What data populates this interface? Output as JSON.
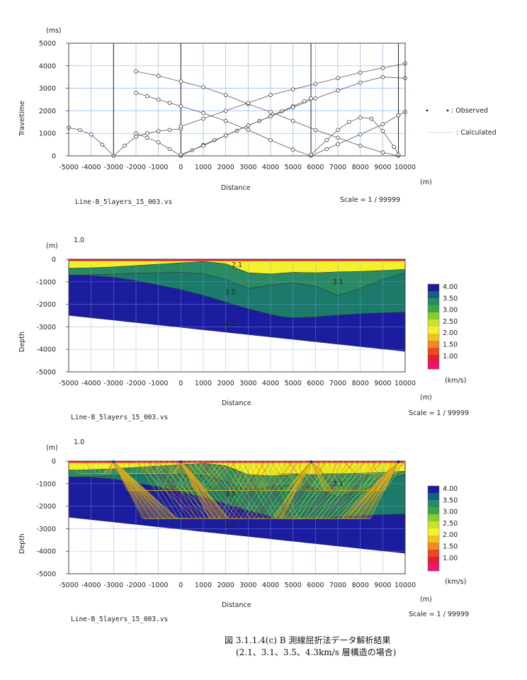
{
  "chart_data": [
    {
      "type": "line",
      "ylabel": "Traveltime",
      "yunit": "(ms)",
      "xlabel": "Distance",
      "xunit": "(m)",
      "xlim": [
        -5000,
        10000
      ],
      "ylim": [
        0,
        5000
      ],
      "xticks": [
        -5000,
        -4000,
        -3000,
        -2000,
        -1000,
        0,
        1000,
        2000,
        3000,
        4000,
        5000,
        6000,
        7000,
        8000,
        9000,
        10000
      ],
      "yticks": [
        0,
        1000,
        2000,
        3000,
        4000,
        5000
      ],
      "shot_points": [
        -3000,
        0,
        5800,
        9700
      ],
      "legend": {
        "observed": ": Observed",
        "calculated": ": Calculated"
      },
      "file_label": "Line-B_5layers_15_003.vs",
      "scale_label": "Scale = 1 / 99999",
      "series": [
        {
          "x": [
            -5000,
            -4500,
            -4000,
            -3500,
            -3000,
            -2500,
            -2000,
            -1500,
            -1000,
            -500,
            0
          ],
          "y": [
            1250,
            1150,
            950,
            500,
            0,
            450,
            850,
            1000,
            1100,
            1150,
            1200
          ]
        },
        {
          "x": [
            -2000,
            -1500,
            -1000,
            -500,
            0,
            500,
            1000,
            1500,
            2000,
            2500,
            3000,
            3500,
            4000,
            4500,
            5000,
            5500,
            5800
          ],
          "y": [
            1000,
            800,
            600,
            300,
            0,
            250,
            480,
            700,
            900,
            1120,
            1340,
            1550,
            1760,
            1980,
            2200,
            2420,
            2550
          ]
        },
        {
          "x": [
            -2000,
            -1500,
            -1000,
            -500,
            0,
            1000,
            2000,
            3000,
            4000,
            5000,
            5800,
            6500,
            7000,
            8000,
            9000,
            9700,
            10000
          ],
          "y": [
            2800,
            2650,
            2500,
            2350,
            2200,
            1900,
            1550,
            1150,
            700,
            280,
            0,
            300,
            520,
            950,
            1400,
            1800,
            1950
          ]
        },
        {
          "x": [
            -2000,
            -1000,
            0,
            1000,
            2000,
            3000,
            4000,
            5000,
            6000,
            7000,
            8000,
            9000,
            9700
          ],
          "y": [
            3750,
            3550,
            3300,
            3050,
            2700,
            2300,
            1950,
            1550,
            1150,
            800,
            450,
            150,
            0
          ]
        },
        {
          "x": [
            0,
            1000,
            2000,
            3000,
            4000,
            5000,
            6000,
            7000,
            8000,
            9000,
            10000
          ],
          "y": [
            50,
            450,
            900,
            1350,
            1750,
            2150,
            2550,
            2900,
            3250,
            3500,
            3450
          ]
        },
        {
          "x": [
            0,
            1000,
            2000,
            3000,
            4000,
            5000,
            6000,
            7000,
            8000,
            9000,
            10000
          ],
          "y": [
            1300,
            1650,
            2000,
            2350,
            2700,
            2950,
            3200,
            3450,
            3700,
            3900,
            4100
          ]
        },
        {
          "x": [
            5800,
            6500,
            7000,
            7500,
            8000,
            8500,
            9000,
            9500,
            9700
          ],
          "y": [
            50,
            700,
            1150,
            1500,
            1700,
            1650,
            1100,
            400,
            50
          ]
        }
      ]
    },
    {
      "type": "area",
      "ylabel": "Depth",
      "yunit": "(m)",
      "xlabel": "Distance",
      "xunit": "(m)",
      "ve_label": "1.0",
      "xlim": [
        -5000,
        10000
      ],
      "ylim": [
        -5000,
        0
      ],
      "xticks": [
        -5000,
        -4000,
        -3000,
        -2000,
        -1000,
        0,
        1000,
        2000,
        3000,
        4000,
        5000,
        6000,
        7000,
        8000,
        9000,
        10000
      ],
      "yticks": [
        0,
        -1000,
        -2000,
        -3000,
        -4000,
        -5000
      ],
      "file_label": "Line-B_5layers_15_003.vs",
      "scale_label": "Scale = 1 / 99999",
      "colorbar": {
        "unit": "(km/s)",
        "labels": [
          "4.00",
          "3.50",
          "3.00",
          "2.50",
          "2.00",
          "1.50",
          "1.00"
        ],
        "colors": [
          "#1c1c9e",
          "#13617c",
          "#2a8a62",
          "#3aa648",
          "#8acc2c",
          "#c8e12a",
          "#f3f22a",
          "#f0c21e",
          "#ee8a1e",
          "#ec4a1e",
          "#e51c3a",
          "#f0146e"
        ]
      },
      "layers": [
        {
          "velocity": "2.1",
          "color": "#f3f22a",
          "top_x": [
            -5000,
            10000
          ],
          "top_y": [
            0,
            0
          ]
        },
        {
          "velocity": "3.1",
          "color": "#2a8a62",
          "top_x": [
            -5000,
            -4000,
            -3000,
            -2000,
            -1000,
            0,
            1000,
            2000,
            3000,
            4000,
            5000,
            6000,
            7000,
            8000,
            9000,
            10000
          ],
          "top_y": [
            -400,
            -380,
            -340,
            -280,
            -220,
            -160,
            -100,
            -200,
            -600,
            -650,
            -580,
            -600,
            -560,
            -540,
            -500,
            -450
          ]
        },
        {
          "velocity": "3.5",
          "color": "#1c7a6a",
          "top_x": [
            -5000,
            -4000,
            -3000,
            -2000,
            -1000,
            0,
            1000,
            2000,
            3000,
            4000,
            5000,
            6000,
            7000,
            8000,
            9000,
            10000
          ],
          "top_y": [
            -700,
            -690,
            -660,
            -620,
            -600,
            -580,
            -650,
            -900,
            -1300,
            -1150,
            -1050,
            -1200,
            -1600,
            -1300,
            -900,
            -600
          ]
        },
        {
          "velocity": "4.3",
          "color": "#1c1c9e",
          "top_x": [
            -5000,
            -4000,
            -3000,
            -2000,
            -1000,
            0,
            1000,
            2000,
            3000,
            4000,
            4500,
            5000,
            6000,
            7000,
            8000,
            9000,
            10000
          ],
          "top_y": [
            -700,
            -720,
            -800,
            -950,
            -1150,
            -1350,
            -1600,
            -1900,
            -2200,
            -2450,
            -2550,
            -2600,
            -2560,
            -2480,
            -2420,
            -2380,
            -2350
          ]
        }
      ],
      "layer_labels": [
        {
          "text": "2.1",
          "x": 2500,
          "y": -350
        },
        {
          "text": "3.1",
          "x": 7000,
          "y": -1100
        },
        {
          "text": "3.5",
          "x": 2200,
          "y": -1550
        },
        {
          "text": "4.3",
          "x": 2200,
          "y": -2950
        }
      ],
      "basement_x": [
        -5000,
        10000
      ],
      "basement_bottom_y": [
        -2500,
        -4100
      ]
    },
    {
      "type": "area",
      "ylabel": "Depth",
      "yunit": "(m)",
      "xlabel": "Distance",
      "xunit": "(m)",
      "ve_label": "1.0",
      "xlim": [
        -5000,
        10000
      ],
      "ylim": [
        -5000,
        0
      ],
      "xticks": [
        -5000,
        -4000,
        -3000,
        -2000,
        -1000,
        0,
        1000,
        2000,
        3000,
        4000,
        5000,
        6000,
        7000,
        8000,
        9000,
        10000
      ],
      "yticks": [
        0,
        -1000,
        -2000,
        -3000,
        -4000,
        -5000
      ],
      "file_label": "Line-B_5layers_15_003.vs",
      "scale_label": "Scale = 1 / 99999",
      "colorbar_unit": "(km/s)",
      "ray_sources": [
        -3000,
        0,
        5800,
        9700
      ],
      "layer_labels": [
        {
          "text": "3.1",
          "x": 7000,
          "y": -1100
        },
        {
          "text": "3.5",
          "x": 2200,
          "y": -1550
        },
        {
          "text": "4.3",
          "x": 2200,
          "y": -2950
        }
      ]
    }
  ],
  "caption": {
    "line1": "図 3.1.1.4(c)  B 測線屈折法データ解析結果",
    "line2": "(2.1、3.1、3.5、4.3km/s 層構造の場合)"
  }
}
